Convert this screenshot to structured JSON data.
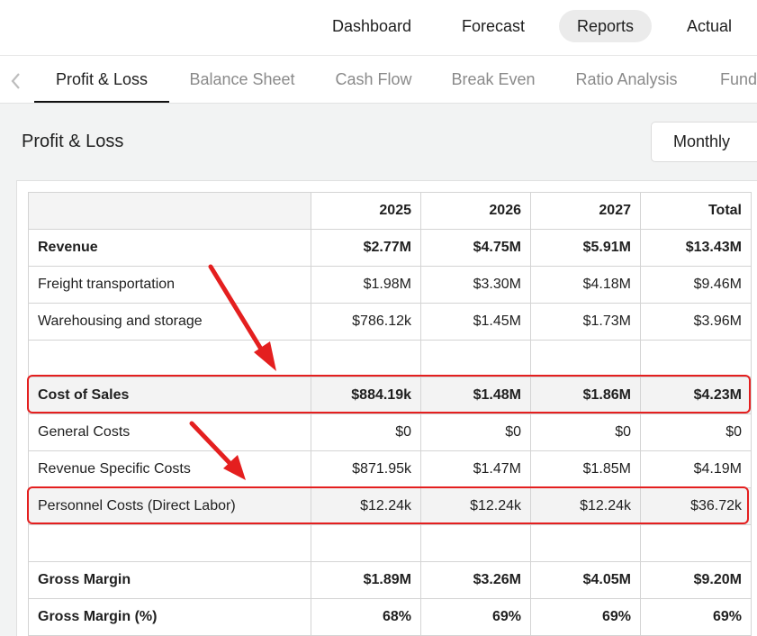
{
  "topnav": {
    "items": [
      {
        "label": "Dashboard",
        "active": false
      },
      {
        "label": "Forecast",
        "active": false
      },
      {
        "label": "Reports",
        "active": true
      },
      {
        "label": "Actual",
        "active": false
      }
    ]
  },
  "subtabs": {
    "back_icon": "chevron-left-icon",
    "items": [
      {
        "label": "Profit & Loss",
        "active": true
      },
      {
        "label": "Balance Sheet",
        "active": false
      },
      {
        "label": "Cash Flow",
        "active": false
      },
      {
        "label": "Break Even",
        "active": false
      },
      {
        "label": "Ratio Analysis",
        "active": false
      },
      {
        "label": "Fundi",
        "active": false
      }
    ]
  },
  "page": {
    "title": "Profit & Loss",
    "period_select": "Monthly"
  },
  "table": {
    "headers": [
      "",
      "2025",
      "2026",
      "2027",
      "Total"
    ],
    "rows": [
      {
        "label": "Revenue",
        "values": [
          "$2.77M",
          "$4.75M",
          "$5.91M",
          "$13.43M"
        ],
        "bold": true
      },
      {
        "label": "Freight transportation",
        "values": [
          "$1.98M",
          "$3.30M",
          "$4.18M",
          "$9.46M"
        ],
        "bold": false
      },
      {
        "label": "Warehousing and storage",
        "values": [
          "$786.12k",
          "$1.45M",
          "$1.73M",
          "$3.96M"
        ],
        "bold": false
      },
      {
        "label": "",
        "values": [
          "",
          "",
          "",
          ""
        ],
        "bold": false
      },
      {
        "label": "Cost of Sales",
        "values": [
          "$884.19k",
          "$1.48M",
          "$1.86M",
          "$4.23M"
        ],
        "bold": true,
        "highlighted": true
      },
      {
        "label": "General Costs",
        "values": [
          "$0",
          "$0",
          "$0",
          "$0"
        ],
        "bold": false
      },
      {
        "label": "Revenue Specific Costs",
        "values": [
          "$871.95k",
          "$1.47M",
          "$1.85M",
          "$4.19M"
        ],
        "bold": false
      },
      {
        "label": "Personnel Costs (Direct Labor)",
        "values": [
          "$12.24k",
          "$12.24k",
          "$12.24k",
          "$36.72k"
        ],
        "bold": false,
        "highlighted": true
      },
      {
        "label": "",
        "values": [
          "",
          "",
          "",
          ""
        ],
        "bold": false
      },
      {
        "label": "Gross Margin",
        "values": [
          "$1.89M",
          "$3.26M",
          "$4.05M",
          "$9.20M"
        ],
        "bold": true
      },
      {
        "label": "Gross Margin (%)",
        "values": [
          "68%",
          "69%",
          "69%",
          "69%"
        ],
        "bold": true
      }
    ]
  },
  "annotation": {
    "color": "#e41f1f"
  }
}
